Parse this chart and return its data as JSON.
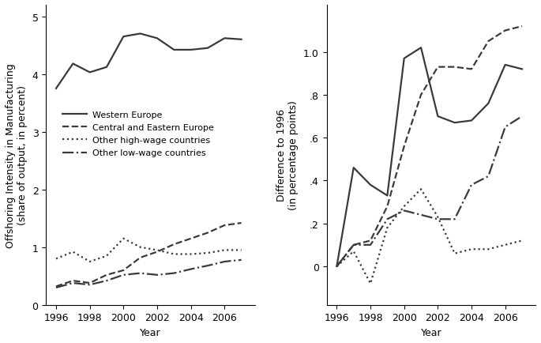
{
  "years": [
    1996,
    1997,
    1998,
    1999,
    2000,
    2001,
    2002,
    2003,
    2004,
    2005,
    2006,
    2007
  ],
  "left": {
    "western_europe": [
      3.75,
      4.18,
      4.03,
      4.12,
      4.65,
      4.7,
      4.62,
      4.42,
      4.42,
      4.45,
      4.62,
      4.6
    ],
    "central_eastern_europe": [
      0.32,
      0.42,
      0.38,
      0.52,
      0.6,
      0.82,
      0.92,
      1.05,
      1.15,
      1.25,
      1.38,
      1.42
    ],
    "other_high_wage": [
      0.8,
      0.92,
      0.75,
      0.85,
      1.15,
      1.0,
      0.95,
      0.88,
      0.88,
      0.9,
      0.95,
      0.95
    ],
    "other_low_wage": [
      0.3,
      0.38,
      0.35,
      0.42,
      0.52,
      0.55,
      0.52,
      0.55,
      0.62,
      0.68,
      0.75,
      0.78
    ],
    "ylabel": "Offshoring Intensity in Manufacturing\n(share of output, in percent)",
    "ylim": [
      0,
      5.2
    ],
    "yticks": [
      0,
      1,
      2,
      3,
      4,
      5
    ]
  },
  "right": {
    "western_europe": [
      0.0,
      0.46,
      0.38,
      0.33,
      0.97,
      1.02,
      0.7,
      0.67,
      0.68,
      0.76,
      0.94,
      0.92
    ],
    "central_eastern_europe": [
      0.0,
      0.1,
      0.12,
      0.28,
      0.56,
      0.8,
      0.93,
      0.93,
      0.92,
      1.05,
      1.1,
      1.12
    ],
    "other_high_wage": [
      0.0,
      0.07,
      -0.08,
      0.18,
      0.28,
      0.36,
      0.23,
      0.06,
      0.08,
      0.08,
      0.1,
      0.12
    ],
    "other_low_wage": [
      0.0,
      0.1,
      0.1,
      0.22,
      0.26,
      0.24,
      0.22,
      0.22,
      0.38,
      0.42,
      0.65,
      0.7
    ],
    "ylabel": "Difference to 1996\n(in percentage points)",
    "ylim": [
      -0.18,
      1.22
    ],
    "yticks": [
      0,
      0.2,
      0.4,
      0.6,
      0.8,
      1.0
    ]
  },
  "legend_labels": [
    "Western Europe",
    "Central and Eastern Europe",
    "Other high-wage countries",
    "Other low-wage countries"
  ],
  "line_styles": [
    "-",
    "--",
    ":",
    "-."
  ],
  "line_color": "#3a3a3a",
  "line_width": 1.6,
  "xlabel": "Year",
  "xticks": [
    1996,
    1998,
    2000,
    2002,
    2004,
    2006
  ],
  "xlim": [
    1995.4,
    2007.8
  ],
  "background_color": "#ffffff",
  "font_size": 9
}
